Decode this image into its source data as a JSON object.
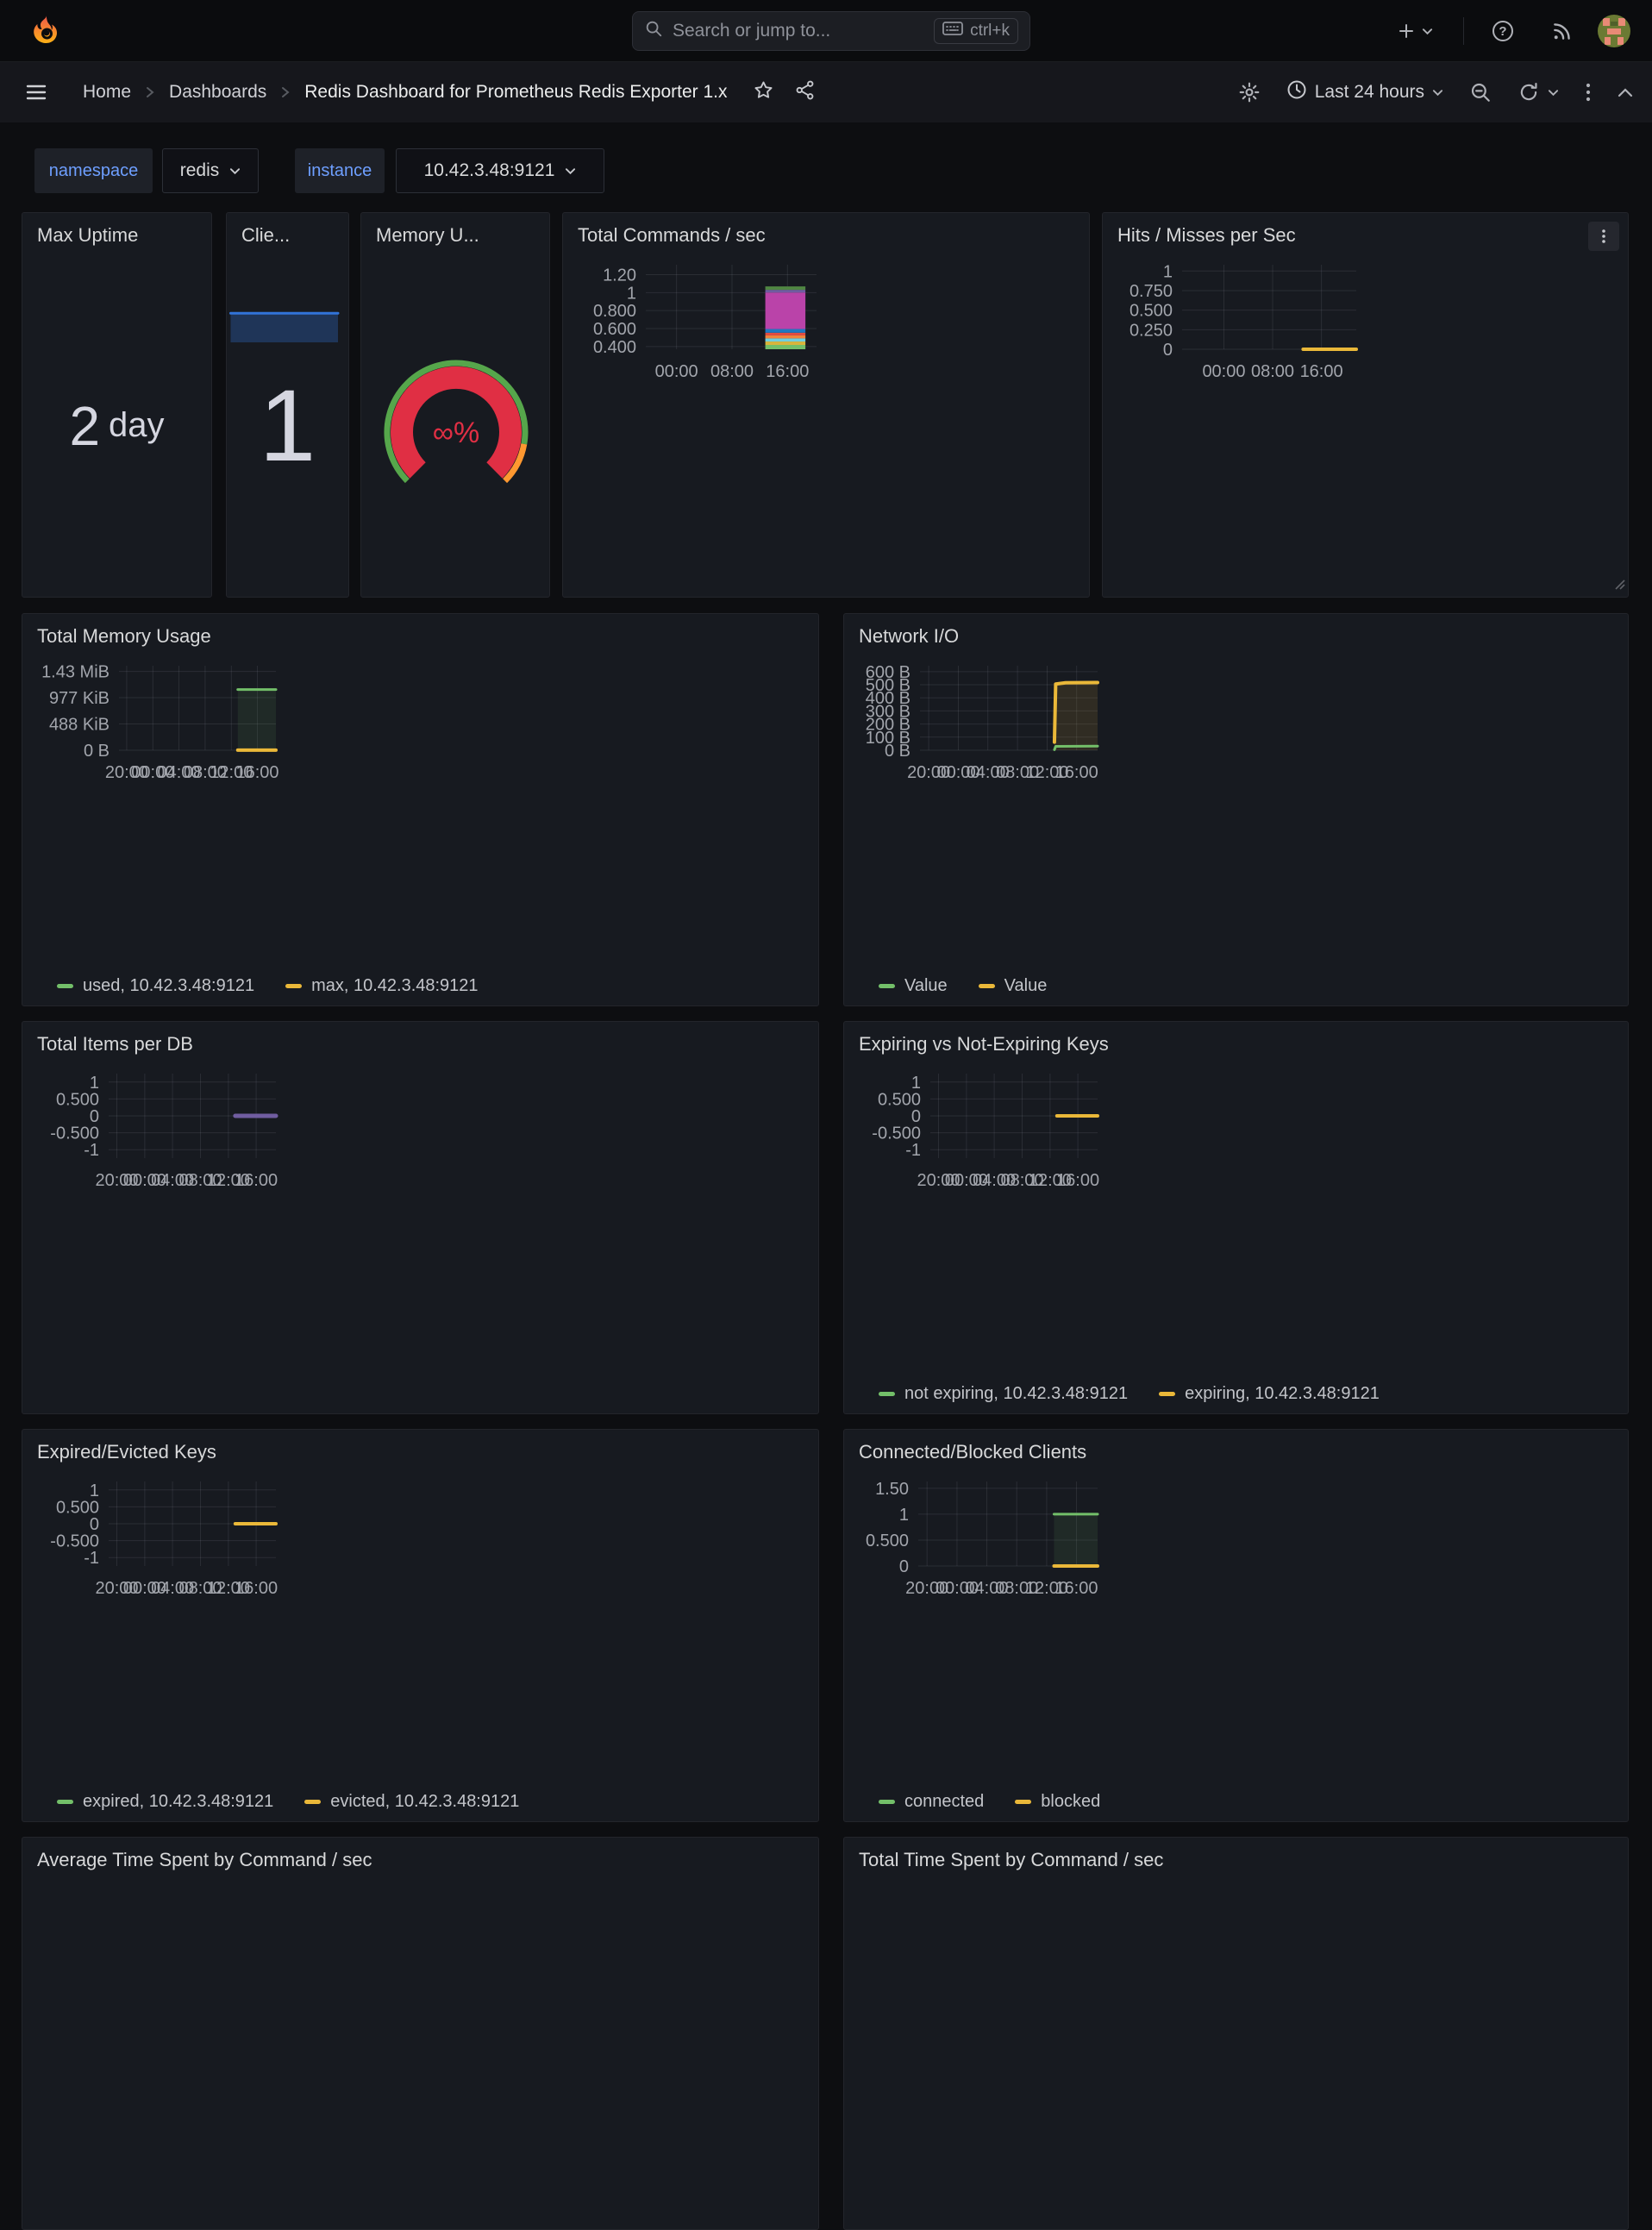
{
  "topnav": {
    "search_placeholder": "Search or jump to...",
    "search_shortcut": "ctrl+k"
  },
  "breadcrumb": {
    "items": [
      "Home",
      "Dashboards",
      "Redis Dashboard for Prometheus Redis Exporter 1.x"
    ]
  },
  "toolbar": {
    "time_range": "Last 24 hours"
  },
  "variables": [
    {
      "label": "namespace",
      "value": "redis"
    },
    {
      "label": "instance",
      "value": "10.42.3.48:9121"
    }
  ],
  "colors": {
    "green": "#73bf69",
    "yellow": "#eab839",
    "blue": "#3274d9",
    "red": "#e02f44",
    "orange": "#ff9830",
    "purple": "#705da0",
    "magenta": "#ba43a9"
  },
  "panels": {
    "max_uptime": {
      "title": "Max Uptime",
      "value": "2",
      "unit": "day",
      "spark": {
        "padL": 0,
        "padR": 0,
        "padT": 0,
        "padB": 0,
        "ylim": [
          0,
          1
        ],
        "series": [
          {
            "color": "#3274d9",
            "width": 3,
            "points": [
              [
                0.775,
                0.0
              ],
              [
                0.99,
                0.716
              ]
            ],
            "fill": "rgba(50,116,217,0.20)",
            "fillTo": 0
          }
        ]
      }
    },
    "clients": {
      "title": "Clie...",
      "value": "1",
      "spark": {
        "padL": 0,
        "padR": 0,
        "padT": 0,
        "padB": 0,
        "ylim": [
          0,
          1
        ],
        "series": [
          {
            "color": "#3274d9",
            "width": 3,
            "points": [
              [
                0.015,
                0.225
              ],
              [
                0.43,
                0.225
              ]
            ],
            "fill": "rgba(50,116,217,0.30)",
            "fillTo": 0
          }
        ]
      }
    },
    "memory": {
      "title": "Memory U...",
      "value": "∞%"
    },
    "total_commands": {
      "title": "Total Commands / sec",
      "chart": {
        "padL": 88,
        "ylim": [
          0.37,
          1.31
        ],
        "yticks": [
          {
            "v": 1.2,
            "label": "1.20"
          },
          {
            "v": 1.0,
            "label": "1"
          },
          {
            "v": 0.8,
            "label": "0.800"
          },
          {
            "v": 0.6,
            "label": "0.600"
          },
          {
            "v": 0.4,
            "label": "0.400"
          }
        ],
        "xticks": [
          {
            "f": 0.18,
            "label": "00:00"
          },
          {
            "f": 0.505,
            "label": "08:00"
          },
          {
            "f": 0.83,
            "label": "16:00"
          }
        ],
        "bars": [
          {
            "f0": 0.7,
            "f1": 0.935,
            "base": 0.37,
            "segments": [
              {
                "v": 0.048,
                "color": "#73bf69"
              },
              {
                "v": 0.038,
                "color": "#d9b53c"
              },
              {
                "v": 0.035,
                "color": "#6ed0e0"
              },
              {
                "v": 0.033,
                "color": "#ef843c"
              },
              {
                "v": 0.03,
                "color": "#e24d42"
              },
              {
                "v": 0.041,
                "color": "#1f78c1"
              },
              {
                "v": 0.406,
                "color": "#ba43a9"
              },
              {
                "v": 0.03,
                "color": "#705da0"
              },
              {
                "v": 0.038,
                "color": "#508642"
              }
            ]
          }
        ],
        "series": []
      }
    },
    "hits_misses": {
      "title": "Hits / Misses per Sec",
      "chart": {
        "padL": 84,
        "ylim": [
          0,
          1.08
        ],
        "yticks": [
          {
            "v": 1,
            "label": "1"
          },
          {
            "v": 0.75,
            "label": "0.750"
          },
          {
            "v": 0.5,
            "label": "0.500"
          },
          {
            "v": 0.25,
            "label": "0.250"
          },
          {
            "v": 0,
            "label": "0"
          }
        ],
        "xticks": [
          {
            "f": 0.24,
            "label": "00:00"
          },
          {
            "f": 0.52,
            "label": "08:00"
          },
          {
            "f": 0.8,
            "label": "16:00"
          }
        ],
        "series": [
          {
            "color": "#eab839",
            "width": 4,
            "points": [
              [
                0.695,
                0
              ],
              [
                1,
                0
              ]
            ]
          }
        ]
      }
    },
    "total_memory": {
      "title": "Total Memory Usage",
      "chart": {
        "padL": 104,
        "ylim": [
          0,
          1570
        ],
        "yticks": [
          {
            "v": 1464,
            "label": "1.43 MiB"
          },
          {
            "v": 977,
            "label": "977 KiB"
          },
          {
            "v": 488,
            "label": "488 KiB"
          },
          {
            "v": 0,
            "label": "0 B"
          }
        ],
        "xticks": [
          {
            "f": 0.049,
            "label": "20:00"
          },
          {
            "f": 0.216,
            "label": "00:00"
          },
          {
            "f": 0.382,
            "label": "04:00"
          },
          {
            "f": 0.549,
            "label": "08:00"
          },
          {
            "f": 0.716,
            "label": "12:00"
          },
          {
            "f": 0.882,
            "label": "16:00"
          }
        ],
        "series": [
          {
            "color": "#73bf69",
            "width": 3,
            "points": [
              [
                0.757,
                1128
              ],
              [
                1,
                1128
              ]
            ],
            "fill": "rgba(115,191,105,0.10)",
            "fillTo": 0
          },
          {
            "color": "#eab839",
            "width": 4,
            "points": [
              [
                0.757,
                2
              ],
              [
                1,
                2
              ]
            ]
          }
        ]
      },
      "legend": [
        {
          "color": "#73bf69",
          "label": "used, 10.42.3.48:9121"
        },
        {
          "color": "#eab839",
          "label": "max, 10.42.3.48:9121"
        }
      ]
    },
    "network_io": {
      "title": "Network I/O",
      "chart": {
        "padL": 80,
        "ylim": [
          0,
          645
        ],
        "yticks": [
          {
            "v": 600,
            "label": "600 B"
          },
          {
            "v": 500,
            "label": "500 B"
          },
          {
            "v": 400,
            "label": "400 B"
          },
          {
            "v": 300,
            "label": "300 B"
          },
          {
            "v": 200,
            "label": "200 B"
          },
          {
            "v": 100,
            "label": "100 B"
          },
          {
            "v": 0,
            "label": "0 B"
          }
        ],
        "xticks": [
          {
            "f": 0.049,
            "label": "20:00"
          },
          {
            "f": 0.216,
            "label": "00:00"
          },
          {
            "f": 0.382,
            "label": "04:00"
          },
          {
            "f": 0.549,
            "label": "08:00"
          },
          {
            "f": 0.716,
            "label": "12:00"
          },
          {
            "f": 0.882,
            "label": "16:00"
          }
        ],
        "series": [
          {
            "color": "#eab839",
            "width": 4,
            "points": [
              [
                0.757,
                62
              ],
              [
                0.764,
                505
              ],
              [
                0.82,
                515
              ],
              [
                1,
                517
              ]
            ],
            "fill": "rgba(234,184,57,0.12)",
            "fillTo": 0
          },
          {
            "color": "#73bf69",
            "width": 3,
            "points": [
              [
                0.757,
                4
              ],
              [
                0.764,
                30
              ],
              [
                1,
                31
              ]
            ]
          }
        ]
      },
      "legend": [
        {
          "color": "#73bf69",
          "label": "Value"
        },
        {
          "color": "#eab839",
          "label": "Value"
        }
      ]
    },
    "total_items": {
      "title": "Total Items per DB",
      "chart": {
        "padL": 92,
        "ylim": [
          -1.25,
          1.25
        ],
        "yticks": [
          {
            "v": 1,
            "label": "1"
          },
          {
            "v": 0.5,
            "label": "0.500"
          },
          {
            "v": 0,
            "label": "0"
          },
          {
            "v": -0.5,
            "label": "-0.500"
          },
          {
            "v": -1,
            "label": "-1"
          }
        ],
        "xticks": [
          {
            "f": 0.049,
            "label": "20:00"
          },
          {
            "f": 0.216,
            "label": "00:00"
          },
          {
            "f": 0.382,
            "label": "04:00"
          },
          {
            "f": 0.549,
            "label": "08:00"
          },
          {
            "f": 0.716,
            "label": "12:00"
          },
          {
            "f": 0.882,
            "label": "16:00"
          }
        ],
        "series": [
          {
            "color": "#705da0",
            "width": 5,
            "points": [
              [
                0.757,
                0
              ],
              [
                1,
                0
              ]
            ]
          }
        ]
      }
    },
    "expiring_keys": {
      "title": "Expiring vs Not-Expiring Keys",
      "chart": {
        "padL": 92,
        "ylim": [
          -1.25,
          1.25
        ],
        "yticks": [
          {
            "v": 1,
            "label": "1"
          },
          {
            "v": 0.5,
            "label": "0.500"
          },
          {
            "v": 0,
            "label": "0"
          },
          {
            "v": -0.5,
            "label": "-0.500"
          },
          {
            "v": -1,
            "label": "-1"
          }
        ],
        "xticks": [
          {
            "f": 0.049,
            "label": "20:00"
          },
          {
            "f": 0.216,
            "label": "00:00"
          },
          {
            "f": 0.382,
            "label": "04:00"
          },
          {
            "f": 0.549,
            "label": "08:00"
          },
          {
            "f": 0.716,
            "label": "12:00"
          },
          {
            "f": 0.882,
            "label": "16:00"
          }
        ],
        "series": [
          {
            "color": "#eab839",
            "width": 4,
            "points": [
              [
                0.757,
                0
              ],
              [
                1,
                0
              ]
            ]
          }
        ]
      },
      "legend": [
        {
          "color": "#73bf69",
          "label": "not expiring, 10.42.3.48:9121"
        },
        {
          "color": "#eab839",
          "label": "expiring, 10.42.3.48:9121"
        }
      ]
    },
    "expired_evicted": {
      "title": "Expired/Evicted Keys",
      "chart": {
        "padL": 92,
        "ylim": [
          -1.25,
          1.25
        ],
        "yticks": [
          {
            "v": 1,
            "label": "1"
          },
          {
            "v": 0.5,
            "label": "0.500"
          },
          {
            "v": 0,
            "label": "0"
          },
          {
            "v": -0.5,
            "label": "-0.500"
          },
          {
            "v": -1,
            "label": "-1"
          }
        ],
        "xticks": [
          {
            "f": 0.049,
            "label": "20:00"
          },
          {
            "f": 0.216,
            "label": "00:00"
          },
          {
            "f": 0.382,
            "label": "04:00"
          },
          {
            "f": 0.549,
            "label": "08:00"
          },
          {
            "f": 0.716,
            "label": "12:00"
          },
          {
            "f": 0.882,
            "label": "16:00"
          }
        ],
        "series": [
          {
            "color": "#eab839",
            "width": 4,
            "points": [
              [
                0.757,
                0
              ],
              [
                1,
                0
              ]
            ]
          }
        ]
      },
      "legend": [
        {
          "color": "#73bf69",
          "label": "expired, 10.42.3.48:9121"
        },
        {
          "color": "#eab839",
          "label": "evicted, 10.42.3.48:9121"
        }
      ]
    },
    "connected_blocked": {
      "title": "Connected/Blocked Clients",
      "chart": {
        "padL": 78,
        "ylim": [
          0,
          1.63
        ],
        "yticks": [
          {
            "v": 1.5,
            "label": "1.50"
          },
          {
            "v": 1,
            "label": "1"
          },
          {
            "v": 0.5,
            "label": "0.500"
          },
          {
            "v": 0,
            "label": "0"
          }
        ],
        "xticks": [
          {
            "f": 0.049,
            "label": "20:00"
          },
          {
            "f": 0.216,
            "label": "00:00"
          },
          {
            "f": 0.382,
            "label": "04:00"
          },
          {
            "f": 0.549,
            "label": "08:00"
          },
          {
            "f": 0.716,
            "label": "12:00"
          },
          {
            "f": 0.882,
            "label": "16:00"
          }
        ],
        "series": [
          {
            "color": "#73bf69",
            "width": 3,
            "points": [
              [
                0.757,
                1
              ],
              [
                1,
                1
              ]
            ],
            "fill": "rgba(115,191,105,0.10)",
            "fillTo": 0
          },
          {
            "color": "#eab839",
            "width": 4,
            "points": [
              [
                0.757,
                0
              ],
              [
                1,
                0
              ]
            ]
          }
        ]
      },
      "legend": [
        {
          "color": "#73bf69",
          "label": "connected"
        },
        {
          "color": "#eab839",
          "label": "blocked"
        }
      ]
    },
    "avg_time": {
      "title": "Average Time Spent by Command / sec"
    },
    "total_time": {
      "title": "Total Time Spent by Command / sec"
    }
  }
}
